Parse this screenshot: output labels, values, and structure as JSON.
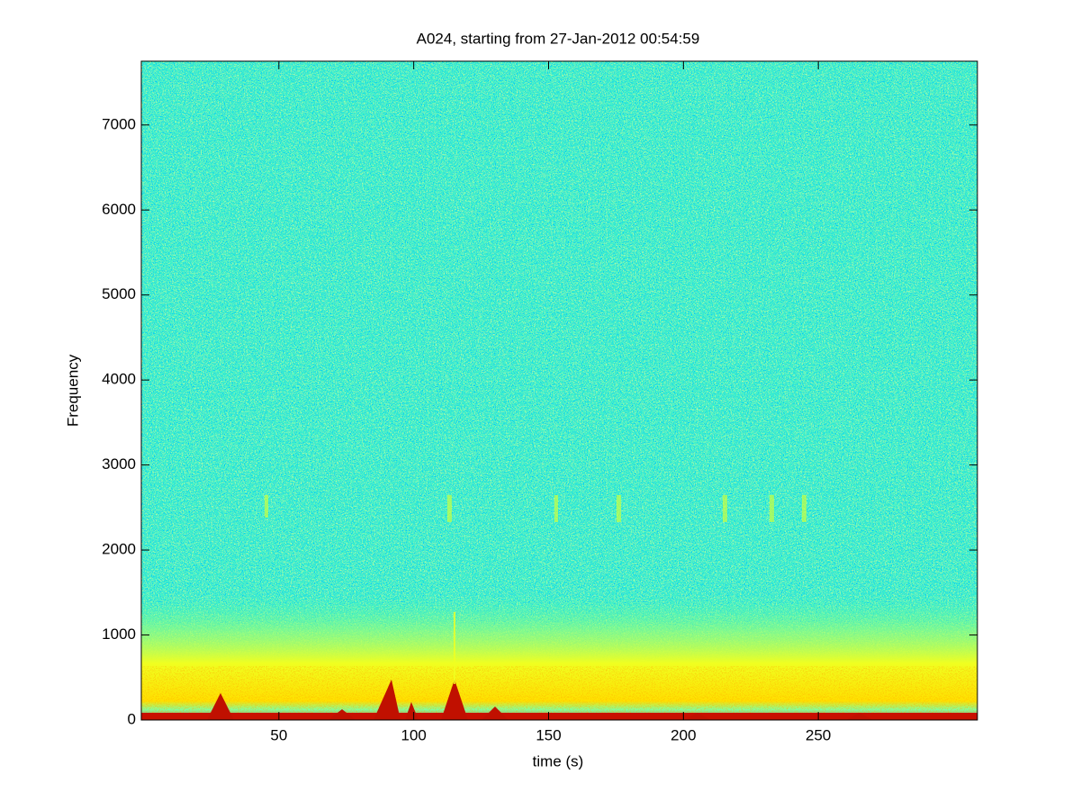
{
  "chart_data": {
    "type": "spectrogram",
    "title": "A024, starting from 27-Jan-2012 00:54:59",
    "x_label": "time (s)",
    "y_label": "Frequency",
    "xlim": [
      -1,
      309
    ],
    "xticks": [
      50,
      100,
      150,
      200,
      250
    ],
    "ylim": [
      0,
      7750
    ],
    "yticks": [
      0,
      1000,
      2000,
      3000,
      4000,
      5000,
      6000,
      7000
    ]
  }
}
